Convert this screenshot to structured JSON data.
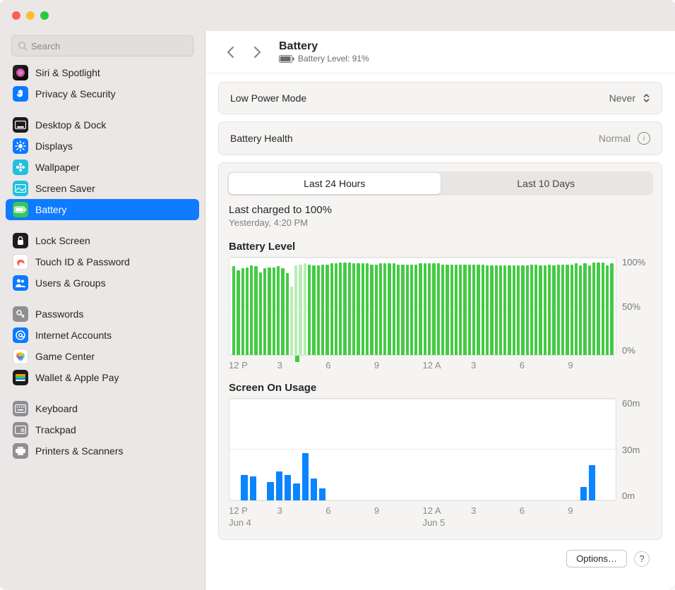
{
  "traffic": {
    "close": "#ff5f57",
    "min": "#febc2e",
    "max": "#28c840"
  },
  "search": {
    "placeholder": "Search"
  },
  "sidebar": {
    "groups": [
      [
        {
          "label": "Siri & Spotlight",
          "icon_bg": "linear-gradient(135deg,#2a2a2a,#000)",
          "glyph": "siri"
        },
        {
          "label": "Privacy & Security",
          "icon_bg": "#0a7aff",
          "glyph": "hand"
        }
      ],
      [
        {
          "label": "Desktop & Dock",
          "icon_bg": "#1c1c1e",
          "glyph": "dock"
        },
        {
          "label": "Displays",
          "icon_bg": "#0a7aff",
          "glyph": "sun"
        },
        {
          "label": "Wallpaper",
          "icon_bg": "#22c0de",
          "glyph": "flower"
        },
        {
          "label": "Screen Saver",
          "icon_bg": "#22c0de",
          "glyph": "screensaver"
        },
        {
          "label": "Battery",
          "icon_bg": "#34c759",
          "glyph": "battery",
          "selected": true
        }
      ],
      [
        {
          "label": "Lock Screen",
          "icon_bg": "#1c1c1e",
          "glyph": "lock"
        },
        {
          "label": "Touch ID & Password",
          "icon_bg": "#ffffff",
          "glyph": "touchid",
          "border": true
        },
        {
          "label": "Users & Groups",
          "icon_bg": "#0a7aff",
          "glyph": "users"
        }
      ],
      [
        {
          "label": "Passwords",
          "icon_bg": "#8e8e93",
          "glyph": "key"
        },
        {
          "label": "Internet Accounts",
          "icon_bg": "#0a7aff",
          "glyph": "at"
        },
        {
          "label": "Game Center",
          "icon_bg": "#ffffff",
          "glyph": "gamecenter",
          "border": true
        },
        {
          "label": "Wallet & Apple Pay",
          "icon_bg": "#1c1c1e",
          "glyph": "wallet"
        }
      ],
      [
        {
          "label": "Keyboard",
          "icon_bg": "#8e8e93",
          "glyph": "keyboard"
        },
        {
          "label": "Trackpad",
          "icon_bg": "#8e8e93",
          "glyph": "trackpad"
        },
        {
          "label": "Printers & Scanners",
          "icon_bg": "#8e8e93",
          "glyph": "printer"
        }
      ]
    ]
  },
  "header": {
    "title": "Battery",
    "subtitle": "Battery Level: 91%"
  },
  "low_power": {
    "label": "Low Power Mode",
    "value": "Never"
  },
  "health": {
    "label": "Battery Health",
    "value": "Normal"
  },
  "tabs": {
    "items": [
      "Last 24 Hours",
      "Last 10 Days"
    ],
    "active": 0
  },
  "charge": {
    "line1": "Last charged to 100%",
    "line2": "Yesterday, 4:20 PM"
  },
  "battery_chart": {
    "title": "Battery Level",
    "bar_color": "#43cb43",
    "light_color": "#b7eeb5",
    "grid_color": "#ececec",
    "y_ticks": [
      "100%",
      "50%",
      "0%"
    ],
    "x_ticks": [
      "12 P",
      "3",
      "6",
      "9",
      "12 A",
      "3",
      "6",
      "9"
    ],
    "values": [
      91,
      87,
      89,
      90,
      92,
      91,
      85,
      89,
      90,
      90,
      91,
      89,
      84,
      70,
      92,
      93,
      94,
      93,
      92,
      92,
      93,
      93,
      94,
      94,
      95,
      95,
      95,
      94,
      94,
      94,
      94,
      93,
      93,
      94,
      94,
      94,
      94,
      93,
      93,
      93,
      93,
      93,
      94,
      94,
      94,
      94,
      94,
      93,
      93,
      93,
      93,
      93,
      93,
      93,
      93,
      93,
      93,
      92,
      92,
      92,
      92,
      92,
      92,
      92,
      92,
      92,
      92,
      93,
      93,
      92,
      92,
      93,
      92,
      93,
      93,
      93,
      93,
      94,
      92,
      94,
      92,
      95,
      95,
      95,
      92,
      94
    ],
    "charging_range": [
      13,
      16
    ],
    "neg": {
      "index": 14,
      "depth": 9
    }
  },
  "usage_chart": {
    "title": "Screen On Usage",
    "bar_color": "#0a84ff",
    "grid_color": "#ececec",
    "y_ticks": [
      "60m",
      "30m",
      "0m"
    ],
    "x_ticks": [
      "12 P",
      "3",
      "6",
      "9",
      "12 A",
      "3",
      "6",
      "9"
    ],
    "num_slots": 44,
    "values": {
      "1": 15,
      "2": 14,
      "4": 11,
      "5": 17,
      "6": 15,
      "7": 10,
      "8": 28,
      "9": 13,
      "10": 7,
      "40": 8,
      "41": 21
    },
    "dates": [
      "Jun 4",
      "Jun 5"
    ]
  },
  "footer": {
    "options": "Options…"
  }
}
